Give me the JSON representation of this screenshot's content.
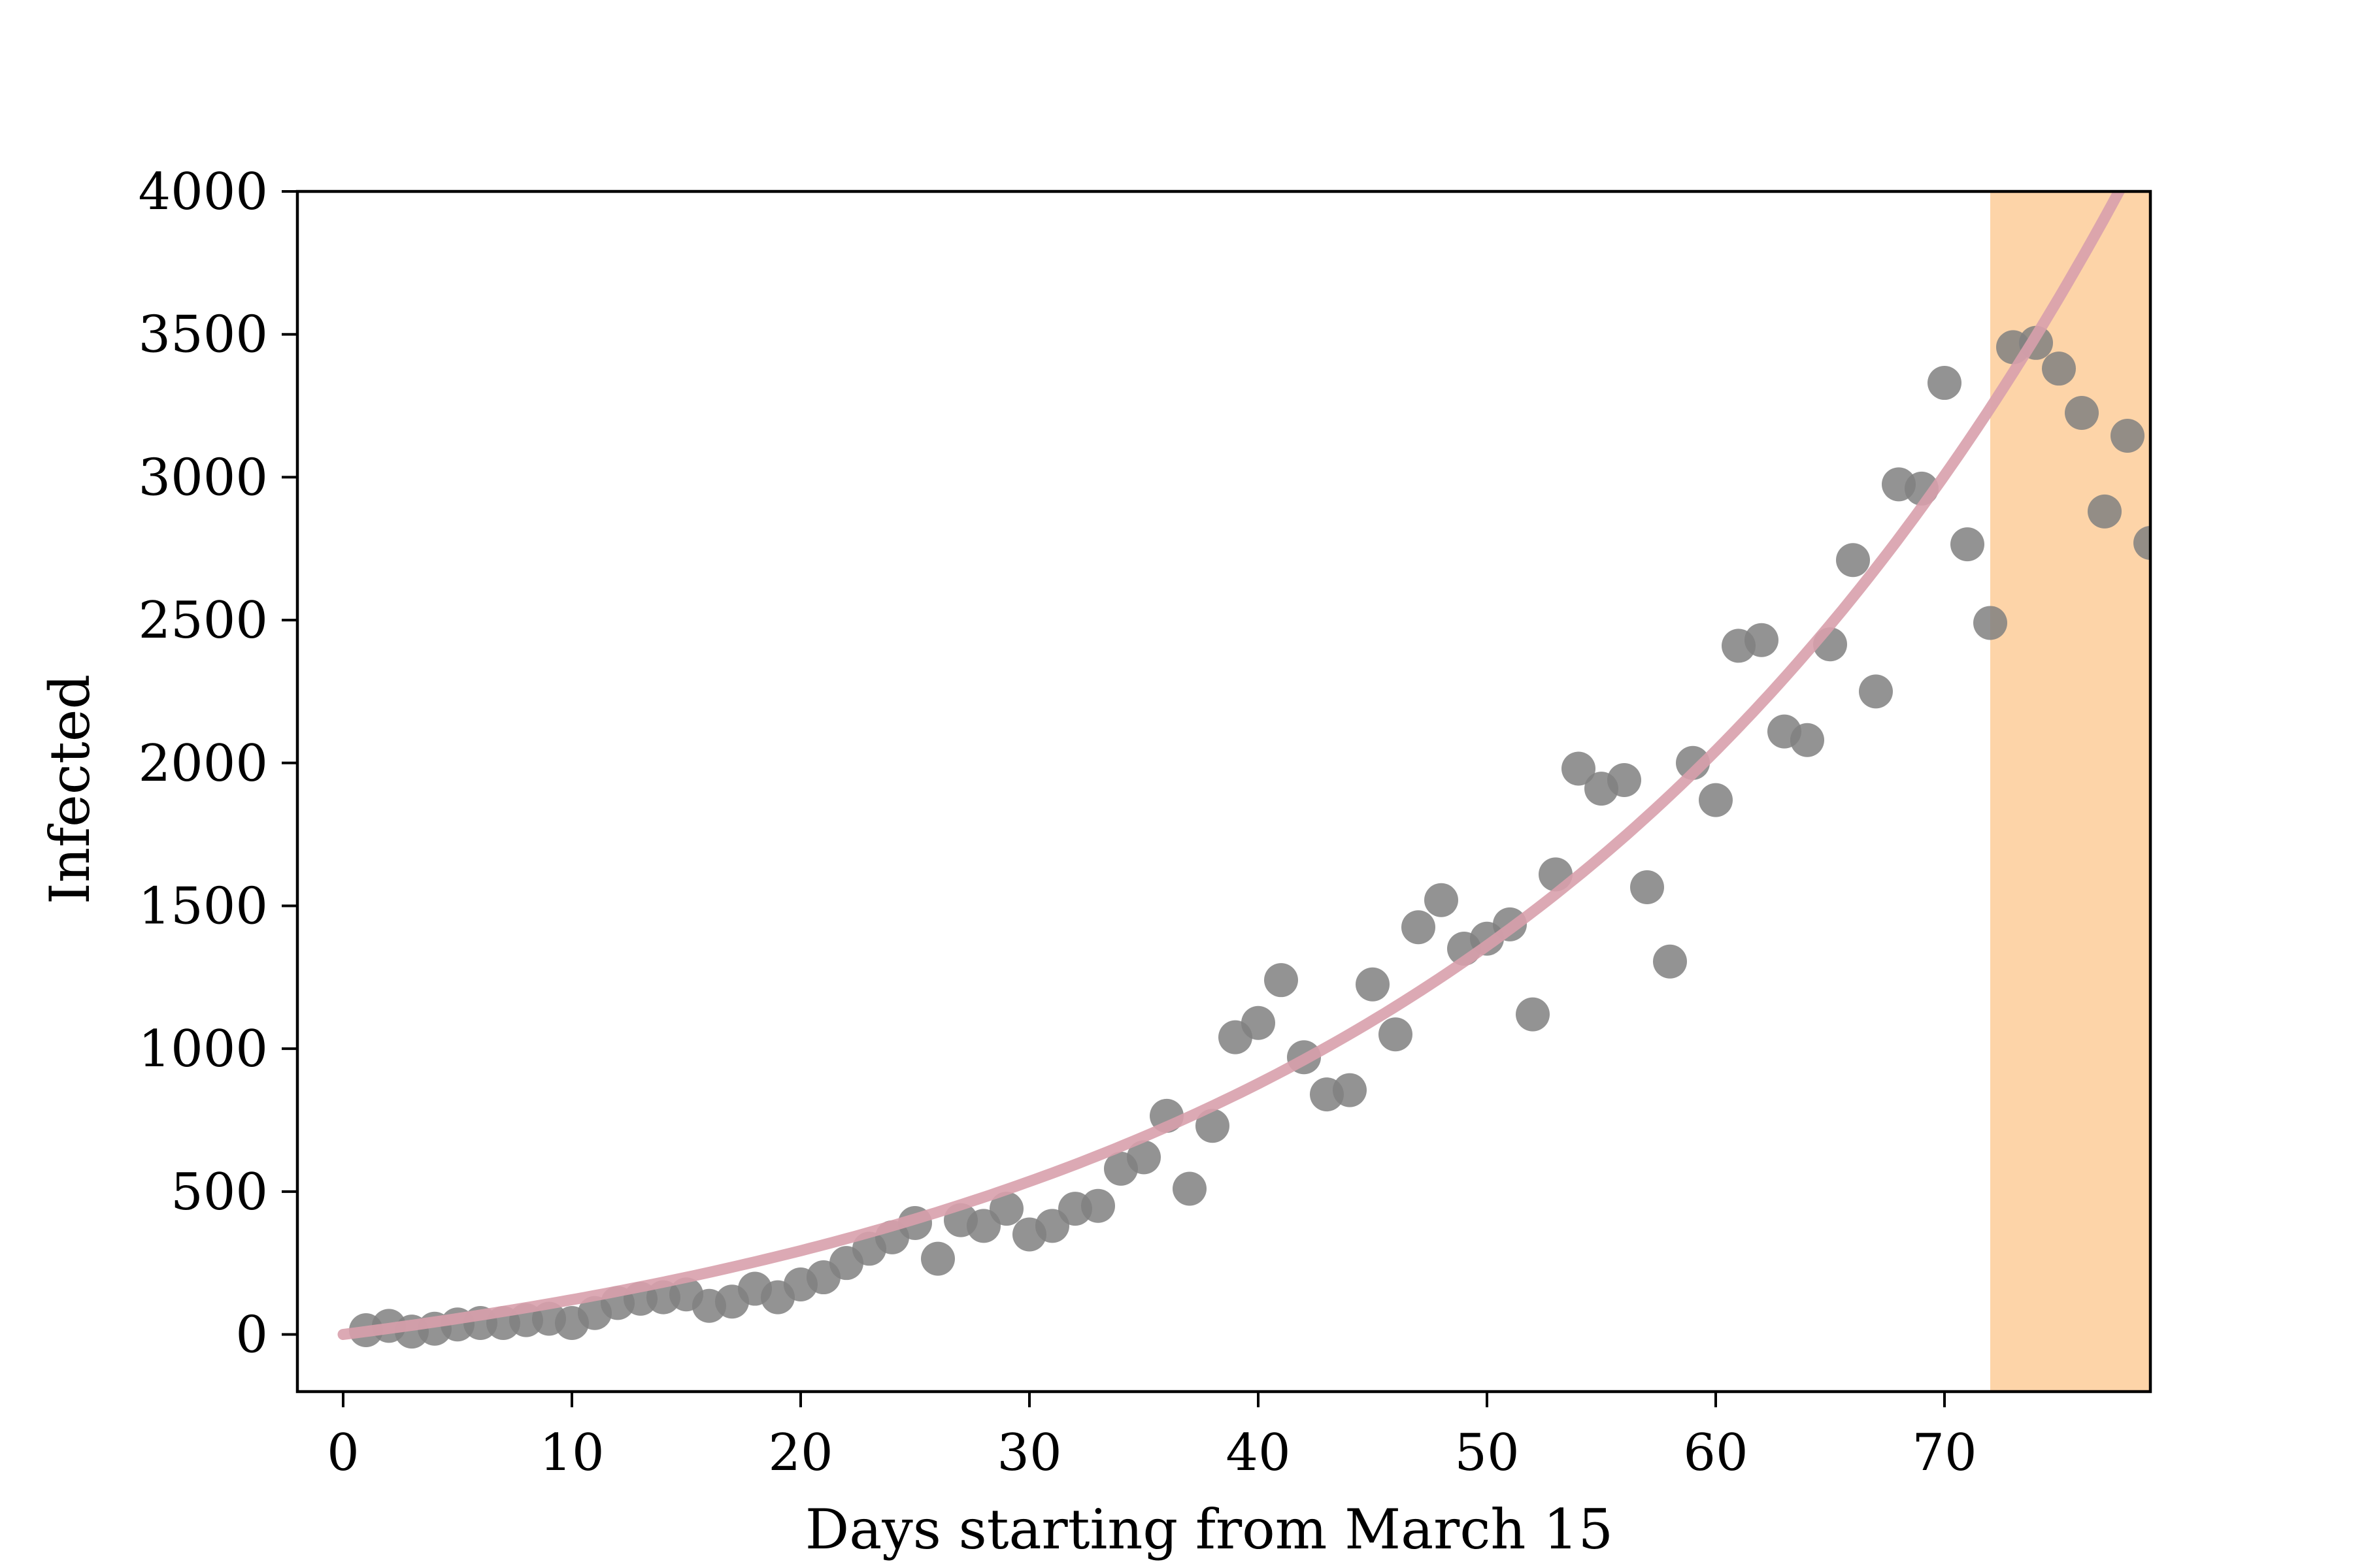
{
  "chart_data": {
    "type": "scatter",
    "title": "",
    "xlabel": "Days starting from March 15",
    "ylabel": "Infected",
    "xlim": [
      -2,
      79
    ],
    "ylim": [
      -200,
      4000
    ],
    "xticks": [
      0,
      10,
      20,
      30,
      40,
      50,
      60,
      70
    ],
    "yticks": [
      0,
      500,
      1000,
      1500,
      2000,
      2500,
      3000,
      3500,
      4000
    ],
    "grid": false,
    "legend": "none",
    "highlight_region": {
      "x_start": 72,
      "x_end": 79,
      "color": "#fdd4a8"
    },
    "series": [
      {
        "kind": "scatter",
        "color": "#808080",
        "points": [
          [
            1,
            15
          ],
          [
            2,
            30
          ],
          [
            3,
            10
          ],
          [
            4,
            20
          ],
          [
            5,
            35
          ],
          [
            6,
            40
          ],
          [
            7,
            40
          ],
          [
            8,
            50
          ],
          [
            9,
            55
          ],
          [
            10,
            40
          ],
          [
            11,
            75
          ],
          [
            12,
            110
          ],
          [
            13,
            125
          ],
          [
            14,
            130
          ],
          [
            15,
            140
          ],
          [
            16,
            100
          ],
          [
            17,
            115
          ],
          [
            18,
            160
          ],
          [
            19,
            130
          ],
          [
            20,
            175
          ],
          [
            21,
            200
          ],
          [
            22,
            250
          ],
          [
            23,
            300
          ],
          [
            24,
            340
          ],
          [
            25,
            390
          ],
          [
            26,
            265
          ],
          [
            27,
            400
          ],
          [
            28,
            380
          ],
          [
            29,
            440
          ],
          [
            30,
            350
          ],
          [
            31,
            380
          ],
          [
            32,
            440
          ],
          [
            33,
            450
          ],
          [
            34,
            580
          ],
          [
            35,
            620
          ],
          [
            36,
            765
          ],
          [
            37,
            510
          ],
          [
            38,
            730
          ],
          [
            39,
            1040
          ],
          [
            40,
            1090
          ],
          [
            41,
            1240
          ],
          [
            42,
            970
          ],
          [
            43,
            840
          ],
          [
            44,
            855
          ],
          [
            45,
            1225
          ],
          [
            46,
            1050
          ],
          [
            47,
            1425
          ],
          [
            48,
            1520
          ],
          [
            49,
            1350
          ],
          [
            50,
            1385
          ],
          [
            51,
            1435
          ],
          [
            52,
            1120
          ],
          [
            53,
            1610
          ],
          [
            54,
            1980
          ],
          [
            55,
            1910
          ],
          [
            56,
            1940
          ],
          [
            57,
            1565
          ],
          [
            58,
            1305
          ],
          [
            59,
            2000
          ],
          [
            60,
            1870
          ],
          [
            61,
            2410
          ],
          [
            62,
            2430
          ],
          [
            63,
            2110
          ],
          [
            64,
            2080
          ],
          [
            65,
            2415
          ],
          [
            66,
            2710
          ],
          [
            67,
            2250
          ],
          [
            68,
            2975
          ],
          [
            69,
            2960
          ],
          [
            70,
            3330
          ],
          [
            71,
            2765
          ],
          [
            72,
            2490
          ],
          [
            73,
            3455
          ],
          [
            74,
            3470
          ],
          [
            75,
            3380
          ],
          [
            76,
            3225
          ],
          [
            77,
            2880
          ],
          [
            78,
            3145
          ],
          [
            79,
            2770
          ]
        ]
      },
      {
        "kind": "line",
        "color": "#d8a0ac",
        "fit": {
          "type": "exponential",
          "a": 295,
          "b": 0.0345,
          "c": -295,
          "x_start": 0,
          "x_end": 78.5
        }
      }
    ]
  }
}
